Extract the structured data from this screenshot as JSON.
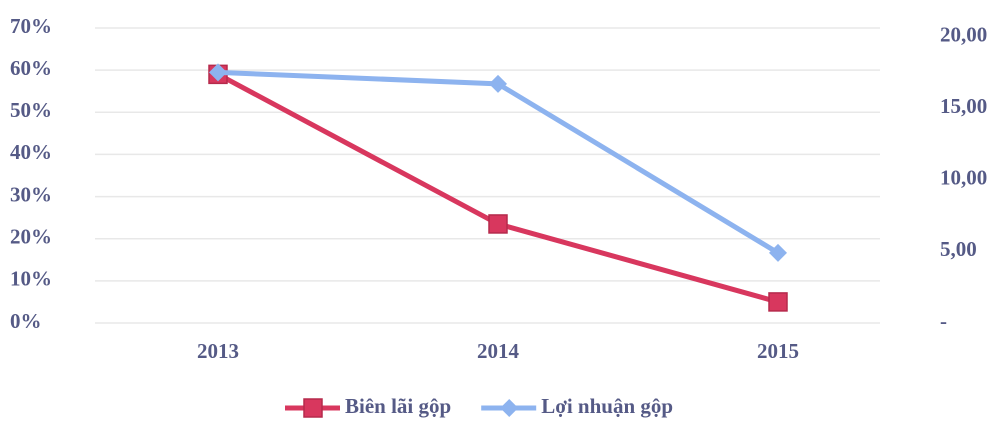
{
  "chart_data": {
    "type": "line",
    "categories": [
      "2013",
      "2014",
      "2015"
    ],
    "series": [
      {
        "name": "Biên lãi gộp",
        "color": "#d8375e",
        "marker": "square",
        "values": [
          59,
          23.5,
          5
        ]
      },
      {
        "name": "Lợi nhuận gộp",
        "color": "#8db3ef",
        "marker": "diamond",
        "axis": "y2",
        "values": [
          17.5,
          16.7,
          4.9
        ]
      }
    ],
    "ylim": [
      0,
      70
    ],
    "yticks": [
      {
        "value": 0,
        "label": "0%"
      },
      {
        "value": 10,
        "label": "10%"
      },
      {
        "value": 20,
        "label": "20%"
      },
      {
        "value": 30,
        "label": "30%"
      },
      {
        "value": 40,
        "label": "40%"
      },
      {
        "value": 50,
        "label": "50%"
      },
      {
        "value": 60,
        "label": "60%"
      },
      {
        "value": 70,
        "label": "70%"
      }
    ],
    "y2lim": [
      0,
      20.6
    ],
    "y2ticks": [
      {
        "value": 0,
        "label": "-"
      },
      {
        "value": 5,
        "label": "5,00"
      },
      {
        "value": 10,
        "label": "10,00"
      },
      {
        "value": 15,
        "label": "15,00"
      },
      {
        "value": 20,
        "label": "20,00"
      }
    ],
    "grid": true,
    "legend": "bottom"
  }
}
